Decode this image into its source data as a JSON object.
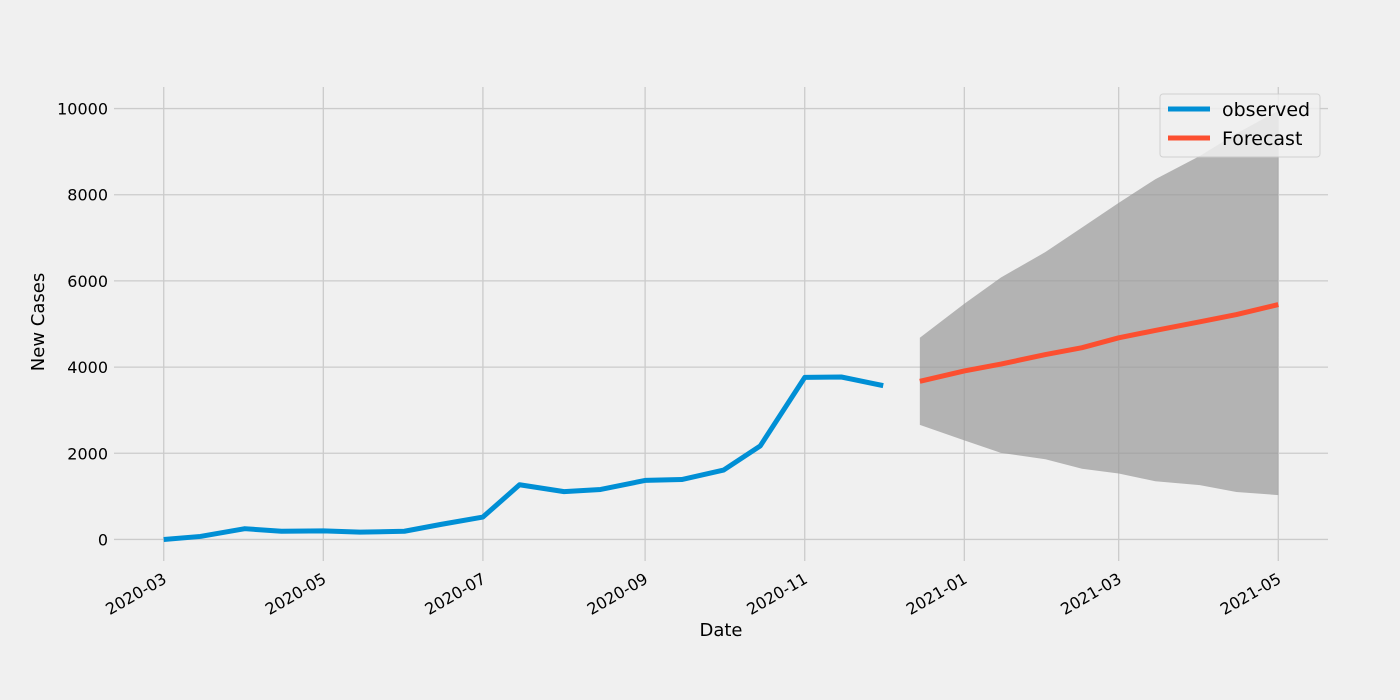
{
  "chart_data": {
    "type": "line",
    "xlabel": "Date",
    "ylabel": "New Cases",
    "xlim": [
      "2020-02-11",
      "2021-05-20"
    ],
    "ylim": [
      -500,
      10500
    ],
    "x_ticks": [
      "2020-03-01",
      "2020-05-01",
      "2020-07-01",
      "2020-09-01",
      "2020-11-01",
      "2021-01-01",
      "2021-03-01",
      "2021-05-01"
    ],
    "x_tick_labels": [
      "2020-03",
      "2020-05",
      "2020-07",
      "2020-09",
      "2020-11",
      "2021-01",
      "2021-03",
      "2021-05"
    ],
    "y_ticks": [
      0,
      2000,
      4000,
      6000,
      8000,
      10000
    ],
    "y_tick_labels": [
      "0",
      "2000",
      "4000",
      "6000",
      "8000",
      "10000"
    ],
    "grid": true,
    "legend": {
      "placement": "top-right",
      "entries": [
        "observed",
        "Forecast"
      ]
    },
    "series": [
      {
        "name": "observed",
        "color": "#008fd5",
        "points": [
          [
            "2020-03-01",
            0
          ],
          [
            "2020-03-15",
            70
          ],
          [
            "2020-04-01",
            250
          ],
          [
            "2020-04-15",
            190
          ],
          [
            "2020-05-01",
            200
          ],
          [
            "2020-05-15",
            170
          ],
          [
            "2020-06-01",
            190
          ],
          [
            "2020-06-15",
            350
          ],
          [
            "2020-07-01",
            520
          ],
          [
            "2020-07-15",
            1270
          ],
          [
            "2020-08-01",
            1110
          ],
          [
            "2020-08-15",
            1160
          ],
          [
            "2020-09-01",
            1370
          ],
          [
            "2020-09-15",
            1390
          ],
          [
            "2020-10-01",
            1610
          ],
          [
            "2020-10-15",
            2170
          ],
          [
            "2020-11-01",
            3760
          ],
          [
            "2020-11-15",
            3770
          ],
          [
            "2020-12-01",
            3570
          ]
        ]
      },
      {
        "name": "Forecast",
        "color": "#fc4f30",
        "points": [
          [
            "2020-12-15",
            3670
          ],
          [
            "2021-01-01",
            3910
          ],
          [
            "2021-01-15",
            4070
          ],
          [
            "2021-02-01",
            4290
          ],
          [
            "2021-02-15",
            4450
          ],
          [
            "2021-03-01",
            4680
          ],
          [
            "2021-03-15",
            4850
          ],
          [
            "2021-04-01",
            5050
          ],
          [
            "2021-04-15",
            5220
          ],
          [
            "2021-05-01",
            5450
          ]
        ]
      }
    ],
    "confidence_band": {
      "color": "#999999",
      "points": [
        [
          "2020-12-15",
          2660,
          4680
        ],
        [
          "2021-01-01",
          2300,
          5470
        ],
        [
          "2021-01-15",
          2010,
          6080
        ],
        [
          "2021-02-01",
          1860,
          6670
        ],
        [
          "2021-02-15",
          1640,
          7240
        ],
        [
          "2021-03-01",
          1530,
          7810
        ],
        [
          "2021-03-15",
          1350,
          8360
        ],
        [
          "2021-04-01",
          1260,
          8900
        ],
        [
          "2021-04-15",
          1100,
          9420
        ],
        [
          "2021-05-01",
          1030,
          9950
        ]
      ]
    }
  }
}
